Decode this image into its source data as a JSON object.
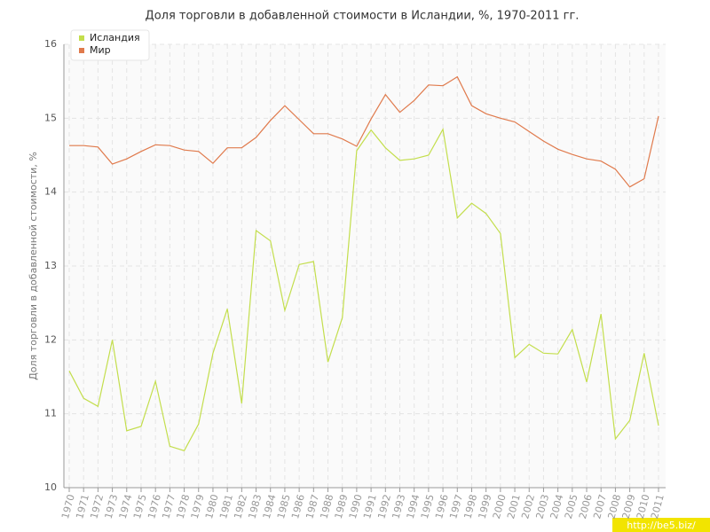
{
  "chart_data": {
    "type": "line",
    "title": "Доля торговли в добавленной стоимости в Исландии, %, 1970-2011 гг.",
    "y_label": "Доля торговли в добавленной стоимости, %",
    "watermark": "http://be5.biz/",
    "categories": [
      "1970",
      "1971",
      "1972",
      "1973",
      "1974",
      "1975",
      "1976",
      "1977",
      "1978",
      "1979",
      "1980",
      "1981",
      "1982",
      "1983",
      "1984",
      "1985",
      "1986",
      "1987",
      "1988",
      "1989",
      "1990",
      "1991",
      "1992",
      "1993",
      "1994",
      "1995",
      "1996",
      "1997",
      "1998",
      "1999",
      "2000",
      "2001",
      "2002",
      "2003",
      "2004",
      "2005",
      "2006",
      "2007",
      "2008",
      "2009",
      "2010",
      "2011"
    ],
    "series": [
      {
        "name": "Исландия",
        "color": "#c3de4c",
        "values": [
          11.58,
          11.21,
          11.1,
          12.0,
          10.77,
          10.83,
          11.44,
          10.56,
          10.5,
          10.86,
          11.82,
          12.42,
          11.14,
          13.48,
          13.34,
          12.4,
          13.02,
          13.06,
          11.7,
          12.3,
          14.56,
          14.84,
          14.6,
          14.43,
          14.45,
          14.5,
          14.85,
          13.65,
          13.85,
          13.71,
          13.44,
          11.76,
          11.94,
          11.82,
          11.81,
          12.14,
          11.43,
          12.35,
          10.66,
          10.91,
          11.82,
          10.84
        ]
      },
      {
        "name": "Мир",
        "color": "#e07a4c",
        "values": [
          14.63,
          14.63,
          14.61,
          14.38,
          14.45,
          14.55,
          14.64,
          14.63,
          14.57,
          14.55,
          14.39,
          14.6,
          14.6,
          14.74,
          14.97,
          15.17,
          14.98,
          14.79,
          14.79,
          14.72,
          14.62,
          14.99,
          15.32,
          15.08,
          15.24,
          15.45,
          15.44,
          15.56,
          15.17,
          15.06,
          15.0,
          14.95,
          14.82,
          14.69,
          14.58,
          14.51,
          14.45,
          14.42,
          14.31,
          14.07,
          14.18,
          15.03
        ]
      }
    ],
    "ylim": [
      10,
      16
    ],
    "yticks": [
      10,
      11,
      12,
      13,
      14,
      15,
      16
    ],
    "grid": true
  }
}
